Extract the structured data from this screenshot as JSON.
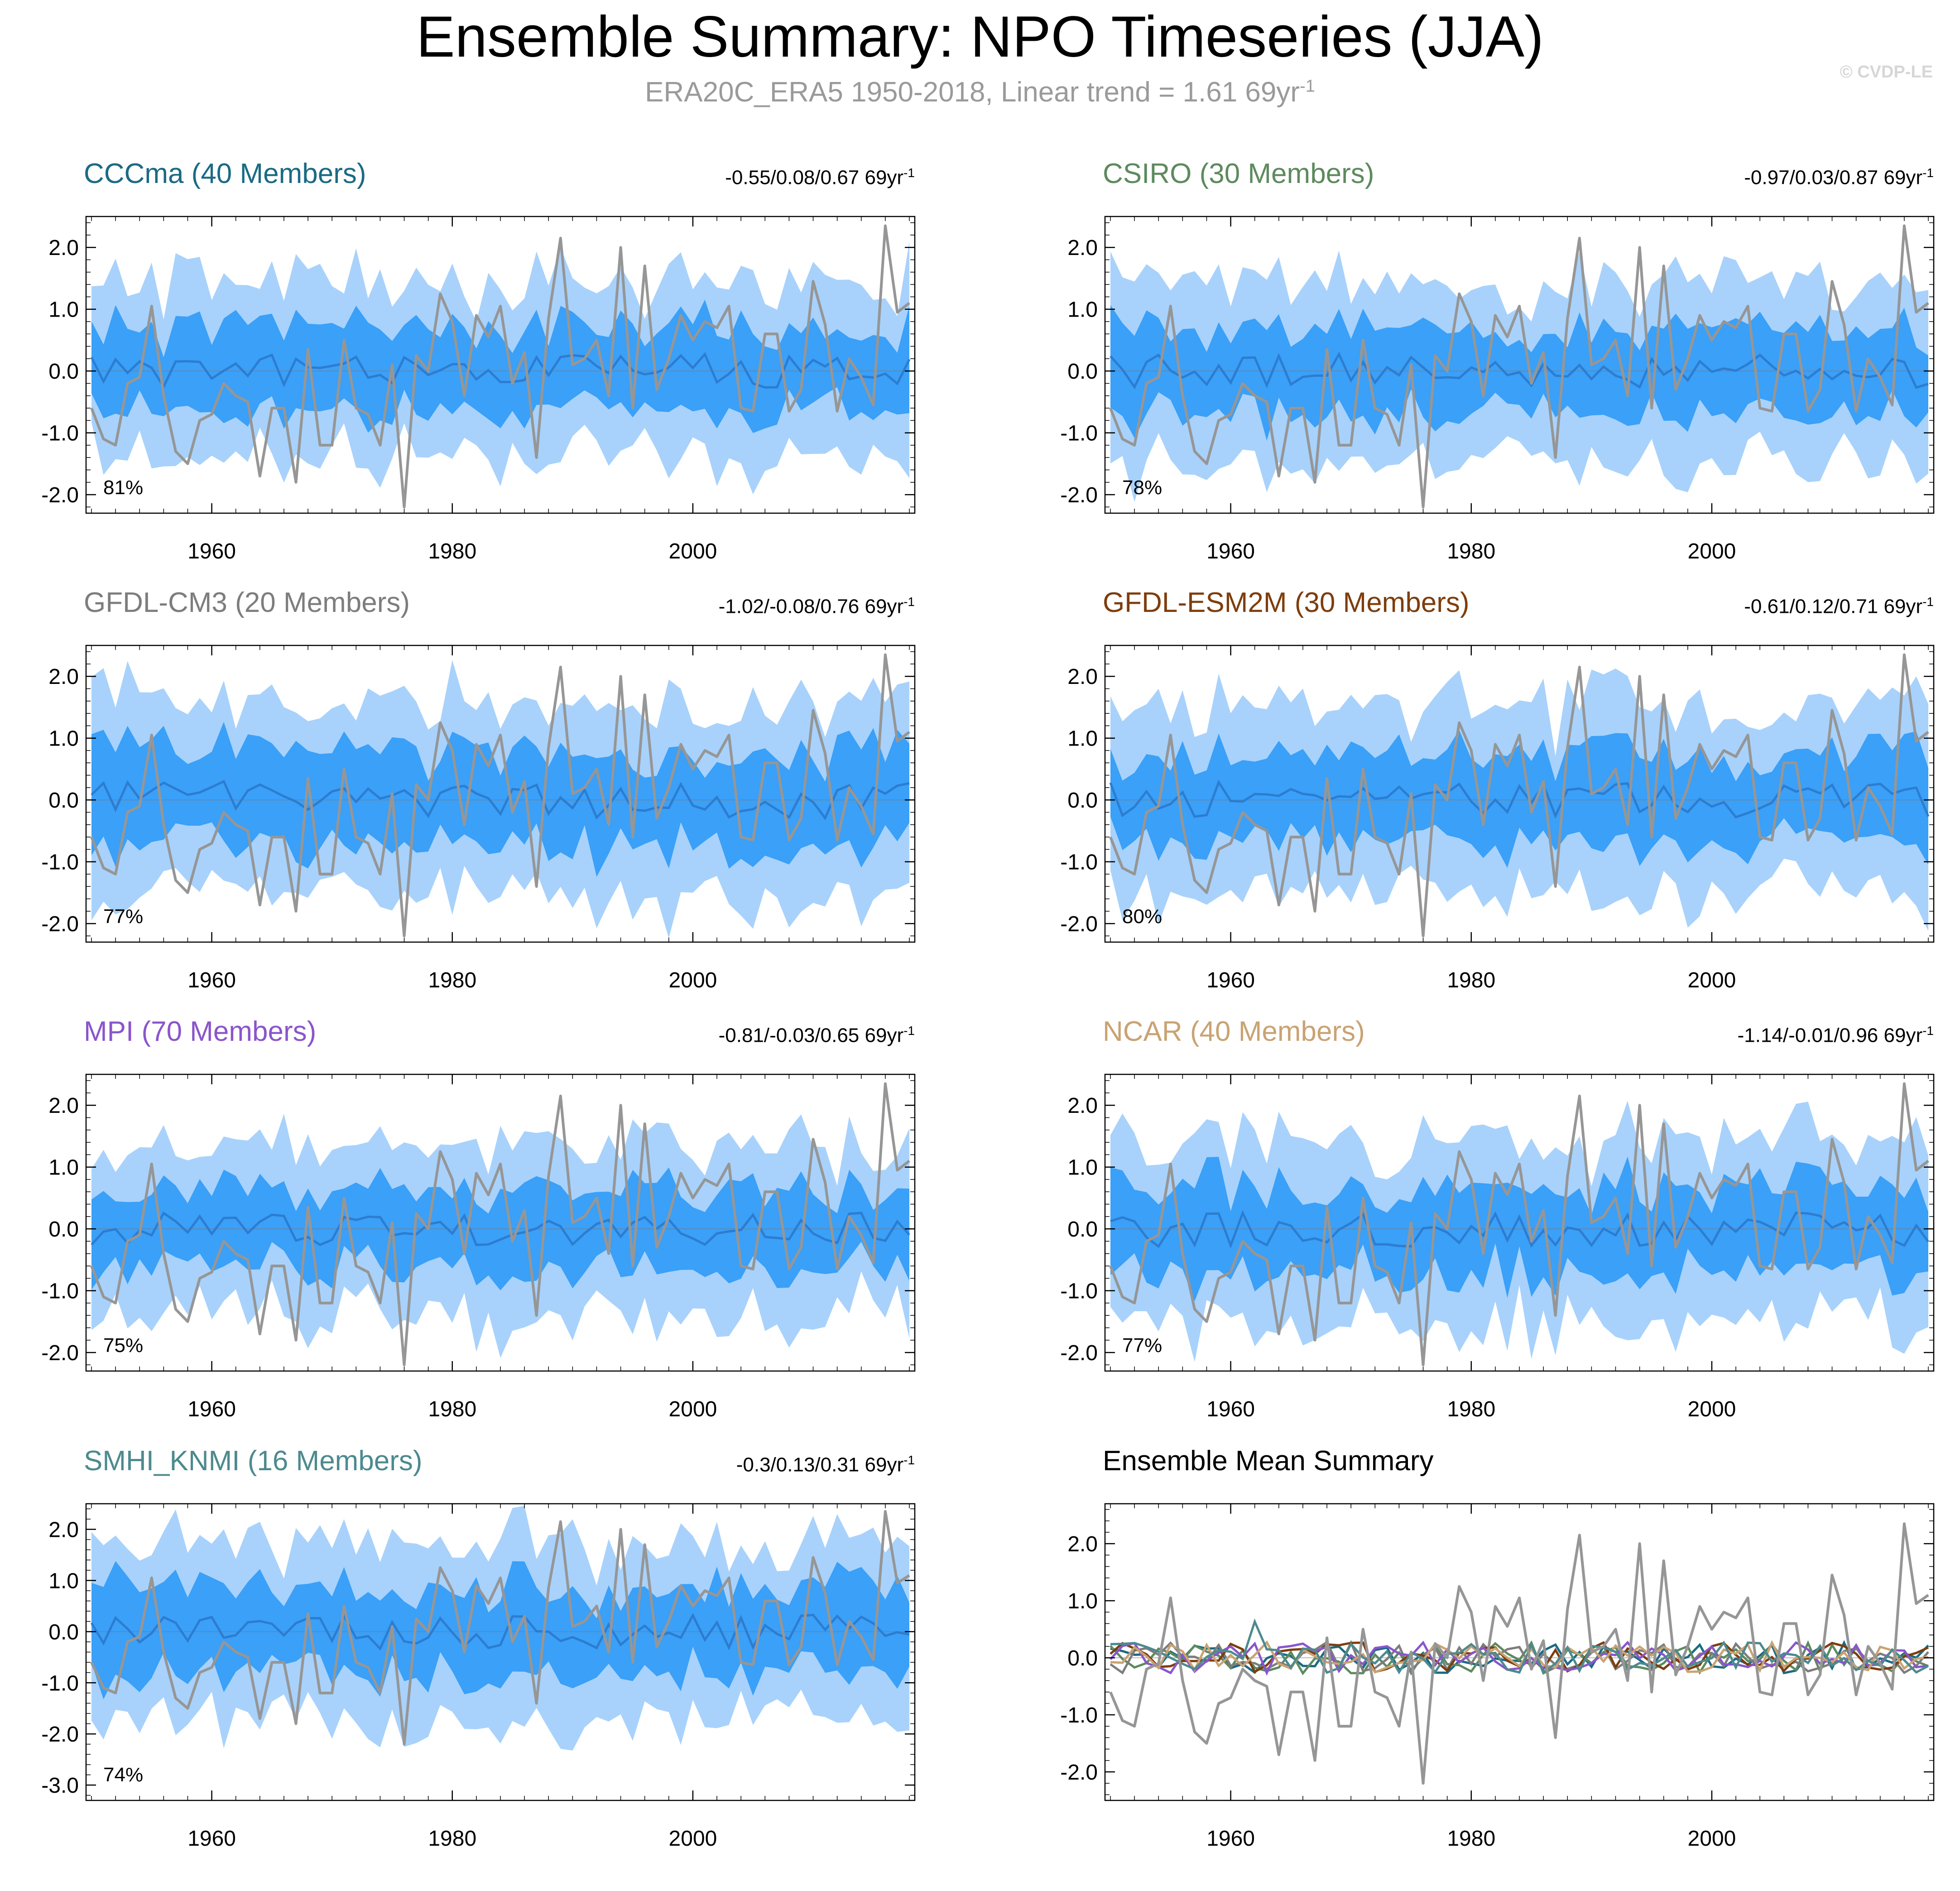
{
  "header": {
    "title": "Ensemble Summary: NPO Timeseries (JJA)",
    "subtitle": "ERA20C_ERA5 1950-2018, Linear trend = 1.61 69yr",
    "subtitle_sup": "-1",
    "watermark": "© CVDP-LE"
  },
  "colors": {
    "band_outer": "#a8d2fb",
    "band_inner": "#3aa0f8",
    "ens_mean": "#2d7cd0",
    "obs": "#969696"
  },
  "chart_data": [
    {
      "type": "area",
      "title": "CCCma (40 Members)",
      "title_color": "#1b6a84",
      "trend_text": "-0.55/0.08/0.67 69yr",
      "trend_sup": "-1",
      "pct_label": "81%",
      "seed": 11,
      "amp": 1,
      "ylim": [
        -2.3,
        2.5
      ],
      "yticks": [
        "2.0",
        "1.0",
        "0.0",
        "-1.0",
        "-2.0"
      ],
      "xticks": [
        "1960",
        "1980",
        "2000"
      ],
      "x_range": [
        1950,
        2018
      ]
    },
    {
      "type": "area",
      "title": "CSIRO (30 Members)",
      "title_color": "#5d8a5e",
      "trend_text": "-0.97/0.03/0.87 69yr",
      "trend_sup": "-1",
      "pct_label": "78%",
      "seed": 23,
      "amp": 1,
      "ylim": [
        -2.3,
        2.5
      ],
      "yticks": [
        "2.0",
        "1.0",
        "0.0",
        "-1.0",
        "-2.0"
      ],
      "xticks": [
        "1960",
        "1980",
        "2000"
      ],
      "x_range": [
        1950,
        2018
      ]
    },
    {
      "type": "area",
      "title": "GFDL-CM3 (20 Members)",
      "title_color": "#7d7d7d",
      "trend_text": "-1.02/-0.08/0.76 69yr",
      "trend_sup": "-1",
      "pct_label": "77%",
      "seed": 37,
      "amp": 1.1,
      "ylim": [
        -2.3,
        2.5
      ],
      "yticks": [
        "2.0",
        "1.0",
        "0.0",
        "-1.0",
        "-2.0"
      ],
      "xticks": [
        "1960",
        "1980",
        "2000"
      ],
      "x_range": [
        1950,
        2018
      ]
    },
    {
      "type": "area",
      "title": "GFDL-ESM2M (30 Members)",
      "title_color": "#7e3d0c",
      "trend_text": "-0.61/0.12/0.71 69yr",
      "trend_sup": "-1",
      "pct_label": "80%",
      "seed": 41,
      "amp": 1.05,
      "ylim": [
        -2.3,
        2.5
      ],
      "yticks": [
        "2.0",
        "1.0",
        "0.0",
        "-1.0",
        "-2.0"
      ],
      "xticks": [
        "1960",
        "1980",
        "2000"
      ],
      "x_range": [
        1950,
        2018
      ]
    },
    {
      "type": "area",
      "title": "MPI (70 Members)",
      "title_color": "#8a55cc",
      "trend_text": "-0.81/-0.03/0.65 69yr",
      "trend_sup": "-1",
      "pct_label": "75%",
      "seed": 53,
      "amp": 0.95,
      "ylim": [
        -2.3,
        2.5
      ],
      "yticks": [
        "2.0",
        "1.0",
        "0.0",
        "-1.0",
        "-2.0"
      ],
      "xticks": [
        "1960",
        "1980",
        "2000"
      ],
      "x_range": [
        1950,
        2018
      ]
    },
    {
      "type": "area",
      "title": "NCAR (40 Members)",
      "title_color": "#c9a373",
      "trend_text": "-1.14/-0.01/0.96 69yr",
      "trend_sup": "-1",
      "pct_label": "77%",
      "seed": 67,
      "amp": 1.05,
      "ylim": [
        -2.3,
        2.5
      ],
      "yticks": [
        "2.0",
        "1.0",
        "0.0",
        "-1.0",
        "-2.0"
      ],
      "xticks": [
        "1960",
        "1980",
        "2000"
      ],
      "x_range": [
        1950,
        2018
      ]
    },
    {
      "type": "area",
      "title": "SMHI_KNMI (16 Members)",
      "title_color": "#4d8a8e",
      "trend_text": "-0.3/0.13/0.31 69yr",
      "trend_sup": "-1",
      "pct_label": "74%",
      "seed": 79,
      "amp": 1.25,
      "ylim": [
        -3.3,
        2.5
      ],
      "yticks": [
        "2.0",
        "1.0",
        "0.0",
        "-1.0",
        "-2.0",
        "-3.0"
      ],
      "xticks": [
        "1960",
        "1980",
        "2000"
      ],
      "x_range": [
        1950,
        2018
      ]
    },
    {
      "type": "line",
      "title": "Ensemble Mean Summary",
      "title_color": "#000000",
      "trend_text": "",
      "trend_sup": "",
      "pct_label": "",
      "seed": 97,
      "amp": 1,
      "ylim": [
        -2.5,
        2.7
      ],
      "yticks": [
        "2.0",
        "1.0",
        "0.0",
        "-1.0",
        "-2.0"
      ],
      "xticks": [
        "1960",
        "1980",
        "2000"
      ],
      "x_range": [
        1950,
        2018
      ],
      "series_colors": [
        "#1b6a84",
        "#5d8a5e",
        "#7d7d7d",
        "#7e3d0c",
        "#8a55cc",
        "#c9a373",
        "#4d8a8e"
      ]
    }
  ],
  "observed": {
    "name": "ERA20C_ERA5",
    "years": [
      1950,
      1951,
      1952,
      1953,
      1954,
      1955,
      1956,
      1957,
      1958,
      1959,
      1960,
      1961,
      1962,
      1963,
      1964,
      1965,
      1966,
      1967,
      1968,
      1969,
      1970,
      1971,
      1972,
      1973,
      1974,
      1975,
      1976,
      1977,
      1978,
      1979,
      1980,
      1981,
      1982,
      1983,
      1984,
      1985,
      1986,
      1987,
      1988,
      1989,
      1990,
      1991,
      1992,
      1993,
      1994,
      1995,
      1996,
      1997,
      1998,
      1999,
      2000,
      2001,
      2002,
      2003,
      2004,
      2005,
      2006,
      2007,
      2008,
      2009,
      2010,
      2011,
      2012,
      2013,
      2014,
      2015,
      2016,
      2017,
      2018
    ],
    "values": [
      -0.6,
      -1.1,
      -1.2,
      -0.2,
      -0.1,
      1.05,
      -0.4,
      -1.3,
      -1.5,
      -0.8,
      -0.7,
      -0.2,
      -0.4,
      -0.5,
      -1.7,
      -0.6,
      -0.6,
      -1.8,
      0.35,
      -1.2,
      -1.2,
      0.5,
      -0.6,
      -0.7,
      -1.2,
      0.1,
      -2.2,
      0.25,
      0.0,
      1.25,
      0.8,
      -0.4,
      0.9,
      0.55,
      1.05,
      -0.2,
      0.3,
      -1.4,
      0.85,
      2.15,
      0.1,
      0.2,
      0.5,
      -0.4,
      2.0,
      -0.6,
      1.7,
      -0.3,
      0.2,
      0.9,
      0.5,
      0.8,
      0.7,
      1.05,
      -0.6,
      -0.65,
      0.6,
      0.6,
      -0.65,
      -0.3,
      1.45,
      0.75,
      -0.65,
      0.2,
      -0.1,
      -0.55,
      2.35,
      0.95,
      1.1
    ]
  }
}
